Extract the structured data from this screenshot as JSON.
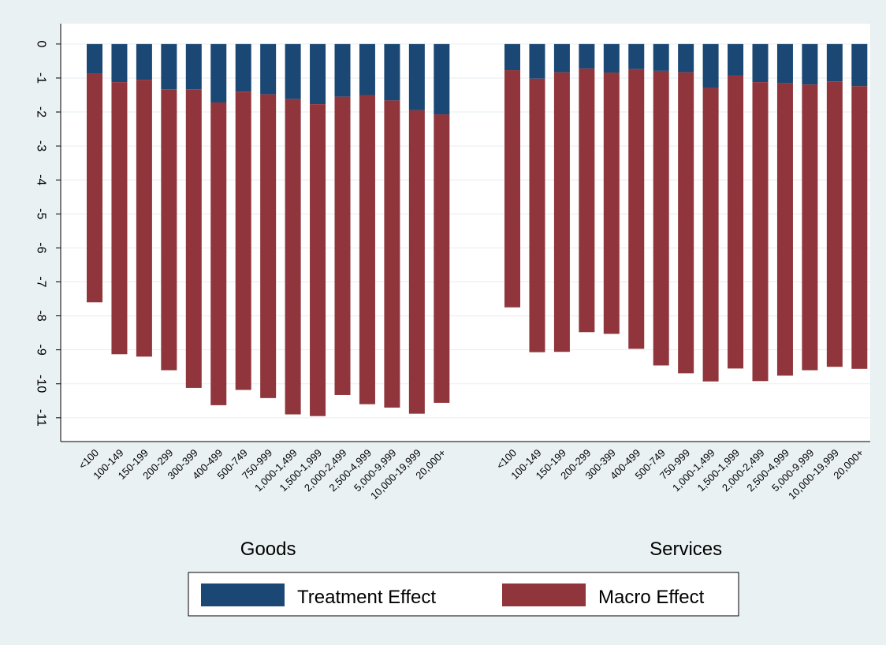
{
  "chart_data": {
    "type": "bar",
    "stacked": true,
    "orientation": "vertical",
    "ylim": [
      -11.7,
      0.6
    ],
    "yticks": [
      0,
      -1,
      -2,
      -3,
      -4,
      -5,
      -6,
      -7,
      -8,
      -9,
      -10,
      -11
    ],
    "grid": true,
    "legend_position": "bottom",
    "categories": [
      "<100",
      "100-149",
      "150-199",
      "200-299",
      "300-399",
      "400-499",
      "500-749",
      "750-999",
      "1,000-1,499",
      "1,500-1,999",
      "2,000-2,499",
      "2,500-4,999",
      "5,000-9,999",
      "10,000-19,999",
      "20,000+"
    ],
    "groups": [
      {
        "label": "Goods",
        "treatment": [
          -0.88,
          -1.12,
          -1.05,
          -1.33,
          -1.33,
          -1.72,
          -1.4,
          -1.48,
          -1.62,
          -1.77,
          -1.55,
          -1.5,
          -1.66,
          -1.95,
          -2.07
        ],
        "total": [
          -7.6,
          -9.13,
          -9.2,
          -9.6,
          -10.12,
          -10.63,
          -10.18,
          -10.42,
          -10.9,
          -10.95,
          -10.33,
          -10.6,
          -10.7,
          -10.88,
          -10.56
        ]
      },
      {
        "label": "Services",
        "treatment": [
          -0.77,
          -1.02,
          -0.83,
          -0.72,
          -0.84,
          -0.74,
          -0.79,
          -0.83,
          -1.29,
          -0.93,
          -1.12,
          -1.15,
          -1.19,
          -1.1,
          -1.24
        ],
        "total": [
          -7.75,
          -9.07,
          -9.06,
          -8.48,
          -8.53,
          -8.97,
          -9.46,
          -9.69,
          -9.93,
          -9.55,
          -9.92,
          -9.76,
          -9.6,
          -9.5,
          -9.56
        ]
      }
    ],
    "series": [
      {
        "name": "Treatment Effect",
        "color": "#1a4773"
      },
      {
        "name": "Macro Effect",
        "color": "#90353b"
      }
    ]
  }
}
